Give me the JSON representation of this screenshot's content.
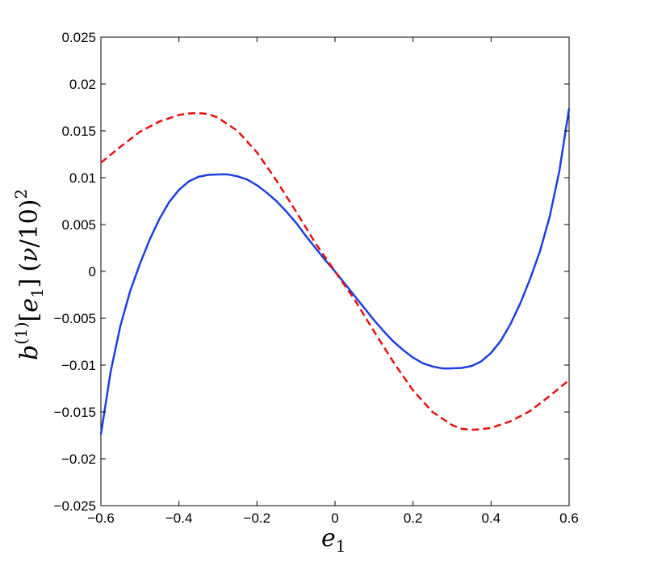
{
  "chart_data": {
    "type": "line",
    "xlabel_parts": {
      "base": "e",
      "sub": "1"
    },
    "ylabel_parts": {
      "b": "b",
      "sup": "(1)",
      "bracket_open": "[",
      "e": "e",
      "e_sub": "1",
      "bracket_close": "]",
      "paren_open": "(",
      "nu": "ν",
      "slash_ten": "/10",
      "paren_close": ")",
      "sq": "2"
    },
    "xlim": [
      -0.6,
      0.6
    ],
    "ylim": [
      -0.025,
      0.025
    ],
    "xticks": [
      -0.6,
      -0.4,
      -0.2,
      0,
      0.2,
      0.4,
      0.6
    ],
    "xtick_labels": [
      "−0.6",
      "−0.4",
      "−0.2",
      "0",
      "0.2",
      "0.4",
      "0.6"
    ],
    "yticks": [
      0.025,
      0.02,
      0.015,
      0.01,
      0.005,
      0,
      -0.005,
      -0.01,
      -0.015,
      -0.02,
      -0.025
    ],
    "ytick_labels": [
      "0.025",
      "0.02",
      "0.015",
      "0.01",
      "0.005",
      "0",
      "−0.005",
      "−0.01",
      "−0.015",
      "−0.02",
      "−0.025"
    ],
    "grid": false,
    "series": [
      {
        "style": "solid",
        "color": "#1f3fdf",
        "x": [
          -0.6,
          -0.575,
          -0.55,
          -0.525,
          -0.5,
          -0.475,
          -0.45,
          -0.425,
          -0.4,
          -0.375,
          -0.35,
          -0.325,
          -0.3,
          -0.285,
          -0.275,
          -0.25,
          -0.225,
          -0.2,
          -0.175,
          -0.15,
          -0.125,
          -0.1,
          -0.075,
          -0.05,
          -0.025,
          0,
          0.025,
          0.05,
          0.075,
          0.1,
          0.125,
          0.15,
          0.175,
          0.2,
          0.225,
          0.25,
          0.275,
          0.285,
          0.3,
          0.325,
          0.35,
          0.375,
          0.4,
          0.425,
          0.45,
          0.475,
          0.5,
          0.525,
          0.55,
          0.575,
          0.6
        ],
        "y": [
          -0.0174,
          -0.0107,
          -0.0058,
          -0.0021,
          0.0008,
          0.0034,
          0.0056,
          0.0074,
          0.0087,
          0.0096,
          0.0101,
          0.0103,
          0.01035,
          0.01037,
          0.01035,
          0.01015,
          0.0098,
          0.0092,
          0.0084,
          0.0075,
          0.0064,
          0.0052,
          0.0038,
          0.0025,
          0.0012,
          0.0,
          -0.0013,
          -0.0026,
          -0.0039,
          -0.0052,
          -0.0064,
          -0.0075,
          -0.0084,
          -0.0092,
          -0.0098,
          -0.01015,
          -0.01035,
          -0.01037,
          -0.01035,
          -0.0103,
          -0.0101,
          -0.0096,
          -0.0087,
          -0.0074,
          -0.0056,
          -0.0034,
          -0.0008,
          0.0021,
          0.0058,
          0.0107,
          0.0174
        ]
      },
      {
        "style": "dashed",
        "color": "#e81010",
        "x": [
          -0.6,
          -0.55,
          -0.5,
          -0.45,
          -0.4,
          -0.375,
          -0.35,
          -0.325,
          -0.3,
          -0.25,
          -0.2,
          -0.15,
          -0.1,
          -0.05,
          0,
          0.05,
          0.1,
          0.15,
          0.2,
          0.25,
          0.3,
          0.325,
          0.35,
          0.375,
          0.4,
          0.45,
          0.5,
          0.55,
          0.6
        ],
        "y": [
          0.0116,
          0.0133,
          0.0149,
          0.016,
          0.0167,
          0.01685,
          0.0169,
          0.0168,
          0.0164,
          0.015,
          0.0127,
          0.0097,
          0.0064,
          0.003,
          0.0,
          -0.003,
          -0.0064,
          -0.0097,
          -0.0127,
          -0.015,
          -0.0164,
          -0.0168,
          -0.0169,
          -0.01685,
          -0.0167,
          -0.016,
          -0.0149,
          -0.0133,
          -0.0116
        ]
      }
    ]
  }
}
